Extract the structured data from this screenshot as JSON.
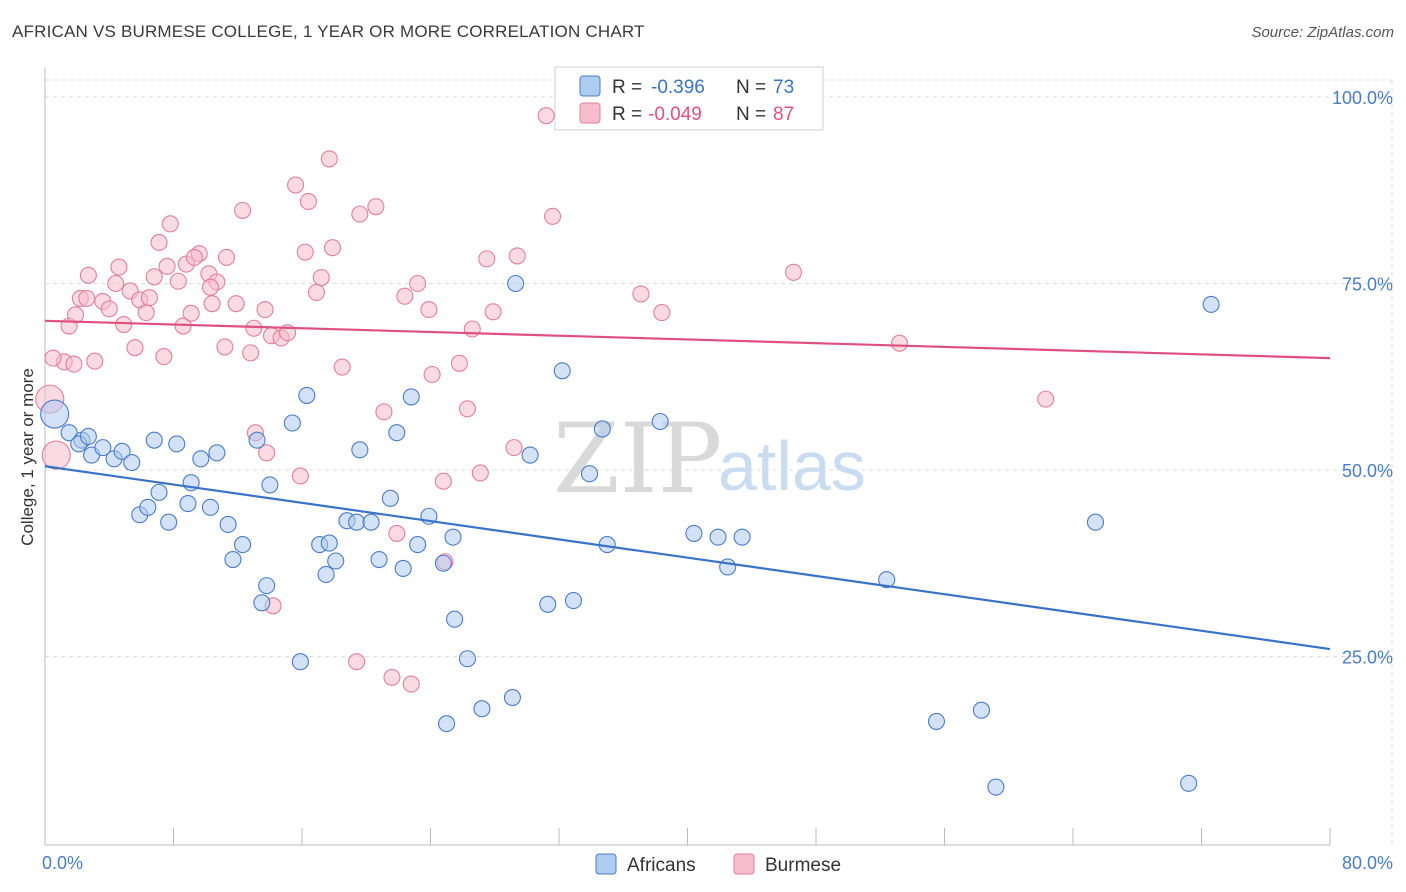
{
  "title": "AFRICAN VS BURMESE COLLEGE, 1 YEAR OR MORE CORRELATION CHART",
  "source": "Source: ZipAtlas.com",
  "watermark": {
    "zip": "ZIP",
    "atlas": "atlas"
  },
  "legend": {
    "r_label": "R =",
    "n_label": "N =",
    "rows": [
      {
        "r": "-0.396",
        "n": "73",
        "fill": "#aecbf0",
        "stroke": "#4a7cc7"
      },
      {
        "r": "-0.049",
        "n": "87",
        "fill": "#f7bccd",
        "stroke": "#e0809f"
      }
    ]
  },
  "bottom_legend": [
    "Africans",
    "Burmese"
  ],
  "chart_data": {
    "type": "scatter",
    "title": "AFRICAN VS BURMESE COLLEGE, 1 YEAR OR MORE CORRELATION CHART",
    "xlabel": "",
    "ylabel": "College, 1 year or more",
    "xlim": [
      0,
      80
    ],
    "ylim": [
      0,
      100
    ],
    "x_tick_labels": [
      "0.0%",
      "80.0%"
    ],
    "y_ticks": [
      25,
      50,
      75,
      100
    ],
    "y_tick_labels": [
      "25.0%",
      "50.0%",
      "75.0%",
      "100.0%"
    ],
    "grid": true,
    "legend_position": "top-center",
    "colors": {
      "Africans": "#3a72c8",
      "Burmese": "#e0507e"
    },
    "series": [
      {
        "name": "Africans",
        "color": "#aecbf0",
        "stroke": "#4a7cc7",
        "trend": {
          "x": [
            0,
            80
          ],
          "y": [
            50.5,
            26.0
          ]
        },
        "points": [
          [
            0.6,
            57.5
          ],
          [
            1.5,
            55
          ],
          [
            2.3,
            54
          ],
          [
            2.9,
            52
          ],
          [
            3.6,
            53
          ],
          [
            4.3,
            51.5
          ],
          [
            4.8,
            52.5
          ],
          [
            5.4,
            51
          ],
          [
            2.1,
            53.5
          ],
          [
            5.9,
            44
          ],
          [
            6.4,
            45
          ],
          [
            7.1,
            47
          ],
          [
            7.7,
            43
          ],
          [
            8.9,
            45.5
          ],
          [
            8.2,
            53.5
          ],
          [
            9.1,
            48.3
          ],
          [
            10.3,
            45
          ],
          [
            6.8,
            54
          ],
          [
            9.7,
            51.5
          ],
          [
            10.7,
            52.3
          ],
          [
            11.4,
            42.7
          ],
          [
            11.7,
            38
          ],
          [
            12.3,
            40
          ],
          [
            13.2,
            54
          ],
          [
            14,
            48
          ],
          [
            13.5,
            32.2
          ],
          [
            13.8,
            34.5
          ],
          [
            15.4,
            56.3
          ],
          [
            15.9,
            24.3
          ],
          [
            16.3,
            60
          ],
          [
            17.1,
            40
          ],
          [
            17.5,
            36
          ],
          [
            17.7,
            40.2
          ],
          [
            18.1,
            37.8
          ],
          [
            18.8,
            43.2
          ],
          [
            19.4,
            43
          ],
          [
            20.3,
            43
          ],
          [
            19.6,
            52.7
          ],
          [
            20.8,
            38
          ],
          [
            21.5,
            46.2
          ],
          [
            21.9,
            55
          ],
          [
            22.3,
            36.8
          ],
          [
            22.8,
            59.8
          ],
          [
            23.2,
            40
          ],
          [
            23.9,
            43.8
          ],
          [
            24.8,
            37.5
          ],
          [
            25.4,
            41
          ],
          [
            25.5,
            30
          ],
          [
            25.0,
            16
          ],
          [
            26.3,
            24.7
          ],
          [
            27.2,
            18
          ],
          [
            29.1,
            19.5
          ],
          [
            29.3,
            75
          ],
          [
            30.2,
            52
          ],
          [
            31.3,
            32
          ],
          [
            32.2,
            63.3
          ],
          [
            32.9,
            32.5
          ],
          [
            33.9,
            49.5
          ],
          [
            34.7,
            55.5
          ],
          [
            35.0,
            40
          ],
          [
            38.3,
            56.5
          ],
          [
            40.4,
            41.5
          ],
          [
            41.9,
            41
          ],
          [
            42.5,
            37
          ],
          [
            43.4,
            41
          ],
          [
            52.4,
            35.3
          ],
          [
            55.5,
            16.3
          ],
          [
            58.3,
            17.8
          ],
          [
            59.2,
            7.5
          ],
          [
            65.4,
            43
          ],
          [
            71.2,
            8
          ],
          [
            72.6,
            72.2
          ],
          [
            2.7,
            54.5
          ]
        ]
      },
      {
        "name": "Burmese",
        "color": "#f7bccd",
        "stroke": "#e0809f",
        "trend": {
          "x": [
            0,
            80
          ],
          "y": [
            70.0,
            65.0
          ]
        },
        "points": [
          [
            0.3,
            59.5
          ],
          [
            0.7,
            52
          ],
          [
            1.2,
            64.5
          ],
          [
            1.5,
            69.3
          ],
          [
            1.8,
            64.2
          ],
          [
            1.9,
            70.8
          ],
          [
            2.2,
            73
          ],
          [
            2.7,
            76.1
          ],
          [
            3.1,
            64.6
          ],
          [
            3.6,
            72.6
          ],
          [
            4.0,
            71.6
          ],
          [
            4.4,
            75
          ],
          [
            4.6,
            77.2
          ],
          [
            4.9,
            69.5
          ],
          [
            5.3,
            74
          ],
          [
            5.6,
            66.4
          ],
          [
            5.9,
            72.8
          ],
          [
            6.3,
            71.1
          ],
          [
            6.5,
            73.1
          ],
          [
            6.8,
            75.9
          ],
          [
            7.1,
            80.5
          ],
          [
            7.4,
            65.2
          ],
          [
            7.8,
            83
          ],
          [
            7.6,
            77.3
          ],
          [
            8.3,
            75.3
          ],
          [
            8.6,
            69.3
          ],
          [
            8.8,
            77.6
          ],
          [
            9.1,
            71
          ],
          [
            9.6,
            79
          ],
          [
            9.3,
            78.5
          ],
          [
            10.2,
            76.3
          ],
          [
            10.4,
            72.3
          ],
          [
            10.7,
            75.2
          ],
          [
            11.2,
            66.5
          ],
          [
            11.3,
            78.5
          ],
          [
            11.9,
            72.3
          ],
          [
            12.3,
            84.8
          ],
          [
            12.8,
            65.7
          ],
          [
            13.0,
            69
          ],
          [
            13.1,
            55
          ],
          [
            13.7,
            71.5
          ],
          [
            13.8,
            52.3
          ],
          [
            14.1,
            68
          ],
          [
            14.7,
            67.7
          ],
          [
            15.1,
            68.4
          ],
          [
            15.6,
            88.2
          ],
          [
            15.9,
            49.2
          ],
          [
            16.2,
            79.2
          ],
          [
            16.4,
            86
          ],
          [
            16.9,
            73.8
          ],
          [
            17.2,
            75.8
          ],
          [
            17.7,
            91.7
          ],
          [
            17.9,
            79.8
          ],
          [
            18.5,
            63.8
          ],
          [
            19.4,
            24.3
          ],
          [
            19.6,
            84.3
          ],
          [
            20.6,
            85.3
          ],
          [
            21.1,
            57.8
          ],
          [
            21.6,
            22.2
          ],
          [
            21.9,
            41.5
          ],
          [
            22.4,
            73.3
          ],
          [
            22.8,
            21.3
          ],
          [
            23.2,
            75
          ],
          [
            23.9,
            71.5
          ],
          [
            24.1,
            62.8
          ],
          [
            24.8,
            48.5
          ],
          [
            24.9,
            37.7
          ],
          [
            25.8,
            64.3
          ],
          [
            26.3,
            58.2
          ],
          [
            26.6,
            68.9
          ],
          [
            27.1,
            49.6
          ],
          [
            27.5,
            78.3
          ],
          [
            27.9,
            71.2
          ],
          [
            29.2,
            53
          ],
          [
            29.4,
            78.7
          ],
          [
            31.2,
            97.5
          ],
          [
            31.6,
            84
          ],
          [
            37.1,
            73.6
          ],
          [
            38.4,
            71.1
          ],
          [
            39.8,
            100.5
          ],
          [
            46.6,
            76.5
          ],
          [
            53.2,
            67
          ],
          [
            62.3,
            59.5
          ],
          [
            0.5,
            65
          ],
          [
            2.6,
            73
          ],
          [
            14.2,
            31.8
          ],
          [
            10.3,
            74.5
          ]
        ]
      }
    ]
  }
}
